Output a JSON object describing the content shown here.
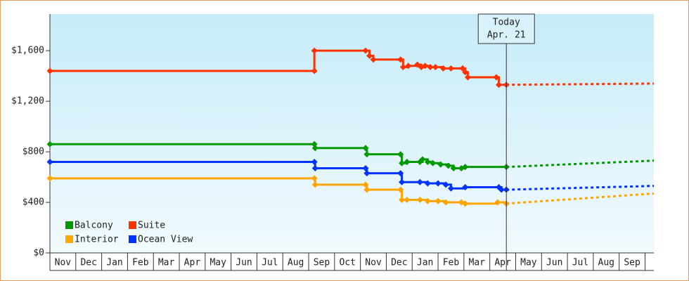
{
  "chart_data": {
    "type": "step-line",
    "ylim": [
      0,
      1890
    ],
    "yticks": [
      {
        "value": 0,
        "label": "$0"
      },
      {
        "value": 400,
        "label": "$400"
      },
      {
        "value": 800,
        "label": "$800"
      },
      {
        "value": 1200,
        "label": "$1,200"
      },
      {
        "value": 1600,
        "label": "$1,600"
      }
    ],
    "xlim": [
      0,
      23.34
    ],
    "xticks": [
      {
        "value": 0,
        "label": "Nov"
      },
      {
        "value": 1,
        "label": "Dec"
      },
      {
        "value": 2,
        "label": "Jan"
      },
      {
        "value": 3,
        "label": "Feb"
      },
      {
        "value": 4,
        "label": "Mar"
      },
      {
        "value": 5,
        "label": "Apr"
      },
      {
        "value": 6,
        "label": "May"
      },
      {
        "value": 7,
        "label": "Jun"
      },
      {
        "value": 8,
        "label": "Jul"
      },
      {
        "value": 9,
        "label": "Aug"
      },
      {
        "value": 10,
        "label": "Sep"
      },
      {
        "value": 11,
        "label": "Oct"
      },
      {
        "value": 12,
        "label": "Nov"
      },
      {
        "value": 13,
        "label": "Dec"
      },
      {
        "value": 14,
        "label": "Jan"
      },
      {
        "value": 15,
        "label": "Feb"
      },
      {
        "value": 16,
        "label": "Mar"
      },
      {
        "value": 17,
        "label": "Apr"
      },
      {
        "value": 18,
        "label": "May"
      },
      {
        "value": 19,
        "label": "Jun"
      },
      {
        "value": 20,
        "label": "Jul"
      },
      {
        "value": 21,
        "label": "Aug"
      },
      {
        "value": 22,
        "label": "Sep"
      }
    ],
    "today": {
      "x": 17.64,
      "label": "Today",
      "date": "Apr. 21"
    },
    "legend": "bottom-left",
    "series": [
      {
        "name": "Balcony",
        "color": "#009900",
        "x": [
          0,
          10.22,
          10.25,
          12.2,
          12.25,
          13.55,
          13.6,
          13.8,
          14.3,
          14.4,
          14.6,
          14.8,
          15.1,
          15.4,
          15.6,
          15.9,
          16.05,
          17.64
        ],
        "values": [
          860,
          860,
          830,
          830,
          780,
          780,
          710,
          720,
          720,
          740,
          720,
          710,
          700,
          690,
          670,
          670,
          680,
          680
        ],
        "forecast_x": [
          17.64,
          20.5,
          23.34
        ],
        "forecast": [
          680,
          705,
          730
        ]
      },
      {
        "name": "Suite",
        "color": "#ff3300",
        "x": [
          0,
          10.22,
          10.22,
          12.2,
          12.35,
          12.5,
          13.55,
          13.65,
          13.85,
          14.2,
          14.35,
          14.5,
          14.7,
          14.9,
          15.2,
          15.5,
          15.95,
          16.05,
          16.15,
          17.25,
          17.35,
          17.64
        ],
        "values": [
          1440,
          1440,
          1600,
          1600,
          1560,
          1530,
          1530,
          1470,
          1480,
          1490,
          1470,
          1480,
          1470,
          1470,
          1460,
          1460,
          1460,
          1430,
          1390,
          1390,
          1330,
          1330
        ],
        "forecast_x": [
          17.64,
          20.5,
          23.34
        ],
        "forecast": [
          1330,
          1335,
          1340
        ]
      },
      {
        "name": "Interior",
        "color": "#ffa500",
        "x": [
          0,
          10.22,
          10.25,
          12.2,
          12.25,
          13.55,
          13.6,
          13.8,
          14.3,
          14.6,
          15.0,
          15.3,
          15.9,
          16.05,
          17.3,
          17.64
        ],
        "values": [
          590,
          590,
          540,
          540,
          500,
          500,
          420,
          420,
          420,
          410,
          410,
          400,
          400,
          390,
          400,
          390
        ],
        "forecast_x": [
          17.64,
          20.5,
          23.34
        ],
        "forecast": [
          390,
          430,
          470
        ]
      },
      {
        "name": "Ocean View",
        "color": "#0033ff",
        "x": [
          0,
          10.22,
          10.25,
          12.2,
          12.25,
          13.55,
          13.6,
          14.3,
          14.6,
          15.0,
          15.3,
          15.5,
          16.05,
          17.35,
          17.45,
          17.64
        ],
        "values": [
          720,
          720,
          670,
          670,
          630,
          630,
          560,
          560,
          550,
          550,
          540,
          510,
          520,
          520,
          500,
          500
        ],
        "forecast_x": [
          17.64,
          20.5,
          23.34
        ],
        "forecast": [
          500,
          515,
          530
        ]
      }
    ]
  }
}
